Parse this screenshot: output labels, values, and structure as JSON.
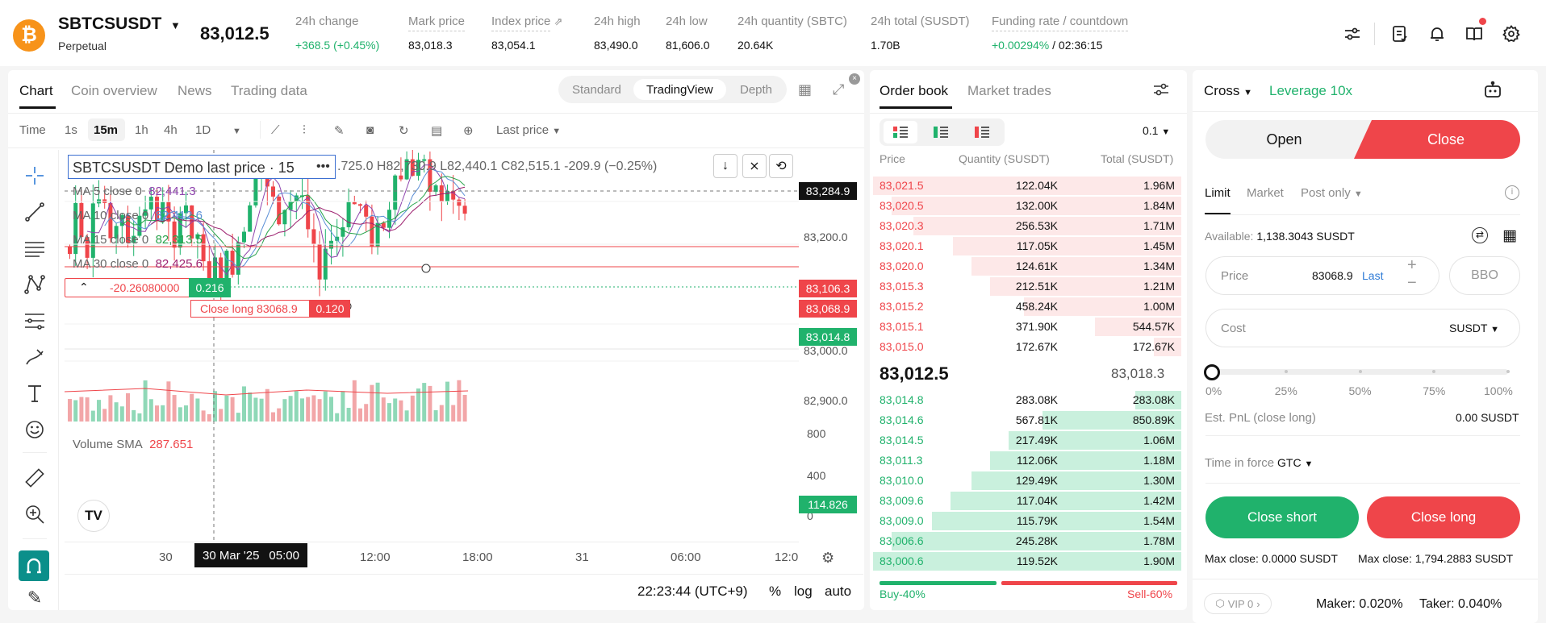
{
  "header": {
    "coin_glyph": "₿",
    "symbol": "SBTCSUSDT",
    "symbol_sub": "Perpetual",
    "last_price": "83,012.5",
    "stats": [
      {
        "label": "24h change",
        "value": "+368.5 (+0.45%)"
      },
      {
        "label": "Mark price",
        "value": "83,018.3"
      },
      {
        "label": "Index price",
        "value": "83,054.1"
      },
      {
        "label": "24h high",
        "value": "83,490.0"
      },
      {
        "label": "24h low",
        "value": "81,606.0"
      },
      {
        "label": "24h quantity (SBTC)",
        "value": "20.64K"
      },
      {
        "label": "24h total (SUSDT)",
        "value": "1.70B"
      },
      {
        "label": "Funding rate / countdown",
        "value": "+0.00294%",
        "value2": "/ 02:36:15"
      }
    ],
    "icons": [
      "sliders-icon",
      "orders-icon",
      "bell-icon",
      "guide-book-icon",
      "settings-icon"
    ]
  },
  "chart_panel": {
    "tabs": [
      "Chart",
      "Coin overview",
      "News",
      "Trading data"
    ],
    "views": [
      "Standard",
      "TradingView",
      "Depth"
    ],
    "intervals": [
      "Time",
      "1s",
      "15m",
      "1h",
      "4h",
      "1D"
    ],
    "price_type": "Last price",
    "legend": {
      "title": "SBTCSUSDT Demo last price · 15",
      "ohlc": ".725.0  H82,730.9  L82,440.1  C82,515.1  -209.9 (−0.25%)",
      "ma": [
        {
          "label": "MA 5 close 0",
          "value": "82,441.3",
          "color": "#8e44ad"
        },
        {
          "label": "MA 10 close 0",
          "value": "82,412.6",
          "color": "#5b8fd6"
        },
        {
          "label": "MA 15 close 0",
          "value": "82,313.5",
          "color": "#27a34b"
        },
        {
          "label": "MA 30 close 0",
          "value": "82,425.6",
          "color": "#9c1f6e"
        }
      ],
      "position_pnl": "-20.26080000",
      "position_qty": "0.216",
      "order_label": "Close long 83068.9",
      "order_qty": "0.120",
      "volume": {
        "label": "Volume SMA",
        "value": "287.651"
      }
    },
    "y_ticks": [
      "83,200.0",
      "83,000.0",
      "82,900.0"
    ],
    "y_badges": [
      {
        "value": "83,284.9",
        "color": "#121212"
      },
      {
        "value": "83,106.3",
        "color": "#ef454a"
      },
      {
        "value": "83,068.9",
        "color": "#ef454a"
      },
      {
        "value": "83,014.8",
        "color": "#20b26c"
      }
    ],
    "vol_ticks": [
      "800",
      "400",
      "0"
    ],
    "vol_badge": "114.826",
    "x_ticks": [
      "30",
      "12:00",
      "18:00",
      "31",
      "06:00",
      "12:0"
    ],
    "x_badge_date": "30 Mar '25",
    "x_badge_time": "05:00",
    "clock": "22:23:44 (UTC+9)",
    "scale_opts": [
      "%",
      "log",
      "auto"
    ]
  },
  "order_book": {
    "tabs": [
      "Order book",
      "Market trades"
    ],
    "precision": "0.1",
    "headers": [
      "Price",
      "Quantity (SUSDT)",
      "Total (SUSDT)"
    ],
    "asks": [
      {
        "price": "83,021.5",
        "qty": "122.04K",
        "total": "1.96M",
        "depth": 1.0
      },
      {
        "price": "83,020.5",
        "qty": "132.00K",
        "total": "1.84M",
        "depth": 0.94
      },
      {
        "price": "83,020.3",
        "qty": "256.53K",
        "total": "1.71M",
        "depth": 0.87
      },
      {
        "price": "83,020.1",
        "qty": "117.05K",
        "total": "1.45M",
        "depth": 0.74
      },
      {
        "price": "83,020.0",
        "qty": "124.61K",
        "total": "1.34M",
        "depth": 0.68
      },
      {
        "price": "83,015.3",
        "qty": "212.51K",
        "total": "1.21M",
        "depth": 0.62
      },
      {
        "price": "83,015.2",
        "qty": "458.24K",
        "total": "1.00M",
        "depth": 0.51
      },
      {
        "price": "83,015.1",
        "qty": "371.90K",
        "total": "544.57K",
        "depth": 0.28
      },
      {
        "price": "83,015.0",
        "qty": "172.67K",
        "total": "172.67K",
        "depth": 0.09
      }
    ],
    "mid_price": "83,012.5",
    "mid_mark": "83,018.3",
    "bids": [
      {
        "price": "83,014.8",
        "qty": "283.08K",
        "total": "283.08K",
        "depth": 0.15
      },
      {
        "price": "83,014.6",
        "qty": "567.81K",
        "total": "850.89K",
        "depth": 0.45
      },
      {
        "price": "83,014.5",
        "qty": "217.49K",
        "total": "1.06M",
        "depth": 0.56
      },
      {
        "price": "83,011.3",
        "qty": "112.06K",
        "total": "1.18M",
        "depth": 0.62
      },
      {
        "price": "83,010.0",
        "qty": "129.49K",
        "total": "1.30M",
        "depth": 0.68
      },
      {
        "price": "83,009.6",
        "qty": "117.04K",
        "total": "1.42M",
        "depth": 0.75
      },
      {
        "price": "83,009.0",
        "qty": "115.79K",
        "total": "1.54M",
        "depth": 0.81
      },
      {
        "price": "83,006.6",
        "qty": "245.28K",
        "total": "1.78M",
        "depth": 0.94
      },
      {
        "price": "83,000.6",
        "qty": "119.52K",
        "total": "1.90M",
        "depth": 1.0
      }
    ],
    "buy_ratio": "Buy-40%",
    "sell_ratio": "Sell-60%",
    "buy_fraction": 0.4
  },
  "trade": {
    "margin_mode": "Cross",
    "leverage": "Leverage 10x",
    "open_label": "Open",
    "close_label": "Close",
    "order_types": [
      "Limit",
      "Market",
      "Post only"
    ],
    "available_label": "Available:",
    "available_value": "1,138.3043 SUSDT",
    "price_label": "Price",
    "price_value": "83068.9",
    "price_last": "Last",
    "bbo": "BBO",
    "cost_label": "Cost",
    "cost_unit": "SUSDT",
    "slider_marks": [
      "0%",
      "25%",
      "50%",
      "75%",
      "100%"
    ],
    "slider_fraction": 0,
    "est_pnl_label": "Est. PnL (close long)",
    "est_pnl_value": "0.00 SUSDT",
    "tif_label": "Time in force",
    "tif_value": "GTC",
    "close_short": "Close short",
    "close_long": "Close long",
    "max_close_short": "Max close: 0.0000 SUSDT",
    "max_close_long": "Max close: 1,794.2883 SUSDT",
    "vip": "VIP 0",
    "maker": "Maker: 0.020%",
    "taker": "Taker: 0.040%"
  },
  "colors": {
    "up": "#20b26c",
    "down": "#ef454a",
    "brand": "#f7931a"
  }
}
